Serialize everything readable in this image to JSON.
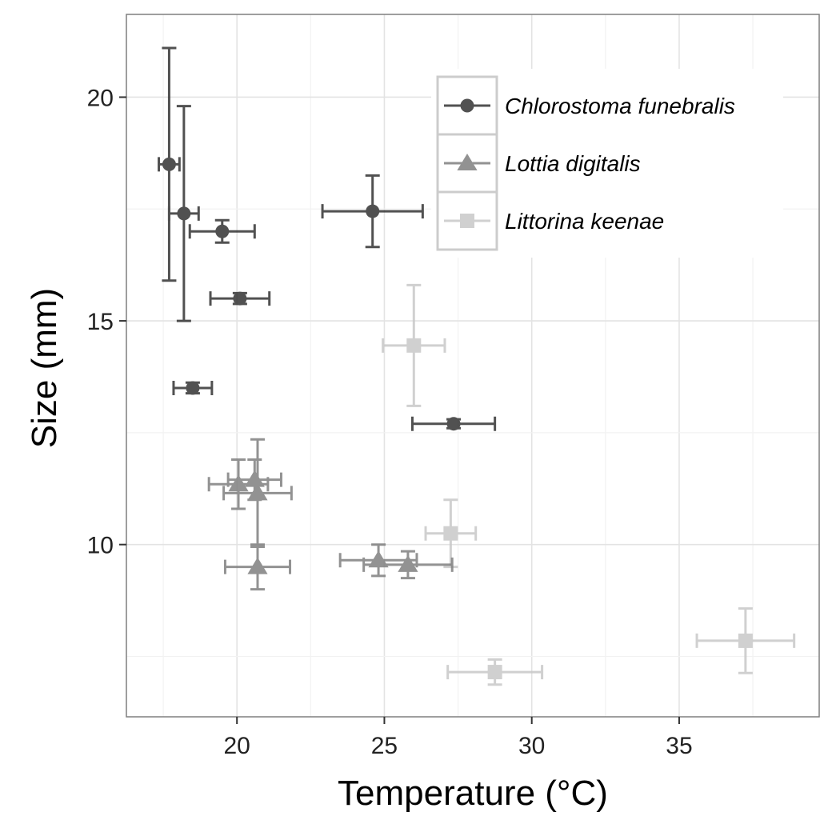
{
  "chart_data": {
    "type": "scatter",
    "xlabel": "Temperature (°C)",
    "ylabel": "Size (mm)",
    "xlim": [
      16.25,
      39.75
    ],
    "ylim": [
      6.15,
      21.85
    ],
    "xticks": [
      20,
      25,
      30,
      35
    ],
    "yticks": [
      10,
      15,
      20
    ],
    "grid": true,
    "legend_position": "top-right",
    "series": [
      {
        "name": "Chlorostoma funebralis",
        "marker": "circle",
        "color": "#333333",
        "points": [
          {
            "x": 17.7,
            "y": 18.5,
            "xerr": 0.35,
            "yerr": 2.6
          },
          {
            "x": 18.2,
            "y": 17.4,
            "xerr": 0.5,
            "yerr": 2.4
          },
          {
            "x": 19.5,
            "y": 17.0,
            "xerr": 1.1,
            "yerr": 0.25
          },
          {
            "x": 24.6,
            "y": 17.45,
            "xerr": 1.7,
            "yerr": 0.8
          },
          {
            "x": 20.1,
            "y": 15.5,
            "xerr": 1.0,
            "yerr": 0.12
          },
          {
            "x": 18.5,
            "y": 13.5,
            "xerr": 0.65,
            "yerr": 0.12
          },
          {
            "x": 27.35,
            "y": 12.7,
            "xerr": 1.4,
            "yerr": 0.1
          }
        ]
      },
      {
        "name": "Lottia digitalis",
        "marker": "triangle",
        "color": "#808080",
        "points": [
          {
            "x": 20.05,
            "y": 11.35,
            "xerr": 1.0,
            "yerr": 0.55
          },
          {
            "x": 20.6,
            "y": 11.45,
            "xerr": 0.9,
            "yerr": 0.45
          },
          {
            "x": 20.7,
            "y": 11.15,
            "xerr": 1.15,
            "yerr": 1.2
          },
          {
            "x": 20.7,
            "y": 9.5,
            "xerr": 1.1,
            "yerr": 0.5
          },
          {
            "x": 24.8,
            "y": 9.65,
            "xerr": 1.3,
            "yerr": 0.35
          },
          {
            "x": 25.8,
            "y": 9.55,
            "xerr": 1.5,
            "yerr": 0.3
          }
        ]
      },
      {
        "name": "Littorina keenae",
        "marker": "square",
        "color": "#c8c8c8",
        "points": [
          {
            "x": 26.0,
            "y": 14.45,
            "xerr": 1.05,
            "yerr": 1.35
          },
          {
            "x": 27.25,
            "y": 10.25,
            "xerr": 0.85,
            "yerr": 0.75
          },
          {
            "x": 28.75,
            "y": 7.15,
            "xerr": 1.6,
            "yerr": 0.28
          },
          {
            "x": 37.25,
            "y": 7.85,
            "xerr": 1.65,
            "yerr": 0.72
          }
        ]
      }
    ]
  }
}
